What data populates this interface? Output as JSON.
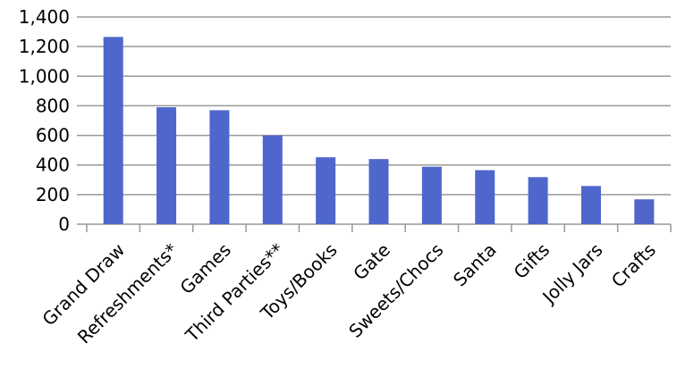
{
  "chart_data": {
    "type": "bar",
    "categories": [
      "Grand Draw",
      "Refreshments*",
      "Games",
      "Third Parties**",
      "Toys/Books",
      "Gate",
      "Sweets/Chocs",
      "Santa",
      "Gifts",
      "Jolly Jars",
      "Crafts"
    ],
    "values": [
      1265,
      790,
      770,
      600,
      452,
      440,
      388,
      365,
      318,
      258,
      168
    ],
    "ylim": [
      0,
      1400
    ],
    "yticks": [
      0,
      200,
      400,
      600,
      800,
      1000,
      1200,
      1400
    ],
    "ytick_labels": [
      "0",
      "200",
      "400",
      "600",
      "800",
      "1,000",
      "1,200",
      "1,400"
    ],
    "title": "",
    "xlabel": "",
    "ylabel": "",
    "grid": true,
    "legend": "none",
    "bar_color": "#4f66cc"
  }
}
